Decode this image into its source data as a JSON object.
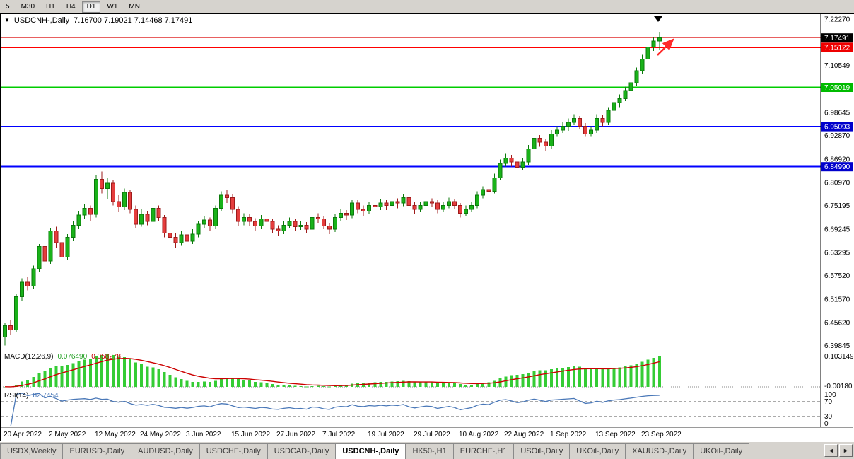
{
  "toolbar": {
    "timeframe_buttons": [
      "5",
      "M30",
      "H1",
      "H4",
      "D1",
      "W1",
      "MN"
    ],
    "active_timeframe": "D1"
  },
  "chart": {
    "symbol_label": "USDCNH-,Daily",
    "ohlc_label": "7.16700 7.19021 7.14468 7.17491",
    "dropdown_icon": "▼"
  },
  "chart_data": {
    "type": "candlestick",
    "symbol": "USDCNH-",
    "timeframe": "Daily",
    "title": "USDCNH-,Daily 7.16700 7.19021 7.14468 7.17491",
    "last_candle": {
      "open": 7.167,
      "high": 7.19021,
      "low": 7.14468,
      "close": 7.17491
    },
    "price_range": {
      "min": 6.385,
      "max": 7.235
    },
    "colors": {
      "up": "#19b219",
      "up_border": "#0b7a0b",
      "down": "#e53d3d",
      "down_border": "#9e1b1b",
      "arrow": "#ff2a2a",
      "bid_tag_bg": "#000000",
      "red_line": "#ff0000",
      "green_line": "#00cc00",
      "blue_line": "#0000ff"
    },
    "y_axis_labels": [
      "7.22270",
      "7.10549",
      "6.98645",
      "6.92870",
      "6.86920",
      "6.80970",
      "6.75195",
      "6.69245",
      "6.63295",
      "6.57520",
      "6.51570",
      "6.45620",
      "6.39845"
    ],
    "price_lines": [
      {
        "label": "7.17491",
        "price": 7.17491,
        "color": "#e86060",
        "width": 1,
        "dash": "",
        "label_bg": "#000000",
        "role": "bid"
      },
      {
        "label": "7.15122",
        "price": 7.15122,
        "color": "#ff0000",
        "width": 2,
        "dash": "",
        "label_bg": "#ee0000",
        "role": "resistance"
      },
      {
        "label": "7.05019",
        "price": 7.05019,
        "color": "#00cc00",
        "width": 2,
        "dash": "",
        "label_bg": "#00bb00",
        "role": "support"
      },
      {
        "label": "6.95093",
        "price": 6.95093,
        "color": "#0000ff",
        "width": 2,
        "dash": "",
        "label_bg": "#0000cc",
        "role": "support"
      },
      {
        "label": "6.84990",
        "price": 6.8499,
        "color": "#0000ff",
        "width": 2,
        "dash": "",
        "label_bg": "#0000cc",
        "role": "support"
      }
    ],
    "x_ticks": [
      {
        "label": "20 Apr 2022",
        "index": 0
      },
      {
        "label": "2 May 2022",
        "index": 8
      },
      {
        "label": "12 May 2022",
        "index": 16
      },
      {
        "label": "24 May 2022",
        "index": 24
      },
      {
        "label": "3 Jun 2022",
        "index": 32
      },
      {
        "label": "15 Jun 2022",
        "index": 40
      },
      {
        "label": "27 Jun 2022",
        "index": 48
      },
      {
        "label": "7 Jul 2022",
        "index": 56
      },
      {
        "label": "19 Jul 2022",
        "index": 64
      },
      {
        "label": "29 Jul 2022",
        "index": 72
      },
      {
        "label": "10 Aug 2022",
        "index": 80
      },
      {
        "label": "22 Aug 2022",
        "index": 88
      },
      {
        "label": "1 Sep 2022",
        "index": 96
      },
      {
        "label": "13 Sep 2022",
        "index": 104
      },
      {
        "label": "23 Sep 2022",
        "index": 112
      }
    ],
    "candles": [
      [
        6.42,
        6.455,
        6.398,
        6.448
      ],
      [
        6.448,
        6.462,
        6.425,
        6.438
      ],
      [
        6.438,
        6.53,
        6.432,
        6.522
      ],
      [
        6.522,
        6.568,
        6.512,
        6.558
      ],
      [
        6.558,
        6.572,
        6.538,
        6.548
      ],
      [
        6.548,
        6.6,
        6.542,
        6.592
      ],
      [
        6.592,
        6.655,
        6.585,
        6.648
      ],
      [
        6.648,
        6.69,
        6.602,
        6.612
      ],
      [
        6.612,
        6.695,
        6.605,
        6.688
      ],
      [
        6.688,
        6.698,
        6.645,
        6.658
      ],
      [
        6.658,
        6.665,
        6.612,
        6.622
      ],
      [
        6.622,
        6.68,
        6.615,
        6.672
      ],
      [
        6.672,
        6.712,
        6.662,
        6.702
      ],
      [
        6.702,
        6.738,
        6.692,
        6.728
      ],
      [
        6.728,
        6.755,
        6.718,
        6.745
      ],
      [
        6.745,
        6.752,
        6.712,
        6.73
      ],
      [
        6.73,
        6.828,
        6.722,
        6.818
      ],
      [
        6.818,
        6.838,
        6.782,
        6.795
      ],
      [
        6.795,
        6.822,
        6.768,
        6.808
      ],
      [
        6.808,
        6.815,
        6.752,
        6.762
      ],
      [
        6.762,
        6.778,
        6.735,
        6.748
      ],
      [
        6.748,
        6.795,
        6.74,
        6.785
      ],
      [
        6.785,
        6.792,
        6.732,
        6.742
      ],
      [
        6.742,
        6.752,
        6.695,
        6.705
      ],
      [
        6.705,
        6.742,
        6.698,
        6.73
      ],
      [
        6.73,
        6.738,
        6.702,
        6.712
      ],
      [
        6.712,
        6.755,
        6.705,
        6.745
      ],
      [
        6.745,
        6.752,
        6.712,
        6.722
      ],
      [
        6.722,
        6.728,
        6.672,
        6.682
      ],
      [
        6.682,
        6.695,
        6.66,
        6.672
      ],
      [
        6.672,
        6.682,
        6.645,
        6.658
      ],
      [
        6.658,
        6.688,
        6.65,
        6.678
      ],
      [
        6.678,
        6.685,
        6.652,
        6.662
      ],
      [
        6.662,
        6.692,
        6.655,
        6.68
      ],
      [
        6.68,
        6.712,
        6.672,
        6.705
      ],
      [
        6.705,
        6.725,
        6.695,
        6.715
      ],
      [
        6.715,
        6.722,
        6.688,
        6.7
      ],
      [
        6.7,
        6.752,
        6.692,
        6.745
      ],
      [
        6.745,
        6.788,
        6.738,
        6.778
      ],
      [
        6.778,
        6.79,
        6.758,
        6.772
      ],
      [
        6.772,
        6.78,
        6.732,
        6.742
      ],
      [
        6.742,
        6.75,
        6.7,
        6.712
      ],
      [
        6.712,
        6.732,
        6.702,
        6.722
      ],
      [
        6.722,
        6.73,
        6.7,
        6.712
      ],
      [
        6.712,
        6.72,
        6.688,
        6.7
      ],
      [
        6.7,
        6.728,
        6.692,
        6.718
      ],
      [
        6.718,
        6.726,
        6.7,
        6.712
      ],
      [
        6.712,
        6.718,
        6.682,
        6.692
      ],
      [
        6.692,
        6.702,
        6.675,
        6.688
      ],
      [
        6.688,
        6.712,
        6.68,
        6.702
      ],
      [
        6.702,
        6.722,
        6.695,
        6.712
      ],
      [
        6.712,
        6.718,
        6.688,
        6.698
      ],
      [
        6.698,
        6.712,
        6.69,
        6.702
      ],
      [
        6.702,
        6.71,
        6.682,
        6.692
      ],
      [
        6.692,
        6.73,
        6.685,
        6.722
      ],
      [
        6.722,
        6.732,
        6.708,
        6.718
      ],
      [
        6.718,
        6.725,
        6.692,
        6.7
      ],
      [
        6.7,
        6.708,
        6.68,
        6.692
      ],
      [
        6.692,
        6.73,
        6.685,
        6.722
      ],
      [
        6.722,
        6.742,
        6.712,
        6.732
      ],
      [
        6.732,
        6.74,
        6.715,
        6.728
      ],
      [
        6.728,
        6.765,
        6.72,
        6.758
      ],
      [
        6.758,
        6.765,
        6.732,
        6.742
      ],
      [
        6.742,
        6.752,
        6.725,
        6.738
      ],
      [
        6.738,
        6.76,
        6.73,
        6.752
      ],
      [
        6.752,
        6.758,
        6.735,
        6.748
      ],
      [
        6.748,
        6.768,
        6.74,
        6.758
      ],
      [
        6.758,
        6.765,
        6.74,
        6.752
      ],
      [
        6.752,
        6.772,
        6.745,
        6.762
      ],
      [
        6.762,
        6.77,
        6.745,
        6.758
      ],
      [
        6.758,
        6.78,
        6.75,
        6.772
      ],
      [
        6.772,
        6.778,
        6.742,
        6.752
      ],
      [
        6.752,
        6.76,
        6.73,
        6.742
      ],
      [
        6.742,
        6.762,
        6.735,
        6.752
      ],
      [
        6.752,
        6.772,
        6.745,
        6.762
      ],
      [
        6.762,
        6.77,
        6.748,
        6.758
      ],
      [
        6.758,
        6.765,
        6.732,
        6.742
      ],
      [
        6.742,
        6.762,
        6.735,
        6.752
      ],
      [
        6.752,
        6.772,
        6.745,
        6.762
      ],
      [
        6.762,
        6.768,
        6.742,
        6.752
      ],
      [
        6.752,
        6.758,
        6.722,
        6.732
      ],
      [
        6.732,
        6.752,
        6.725,
        6.742
      ],
      [
        6.742,
        6.762,
        6.735,
        6.752
      ],
      [
        6.752,
        6.788,
        6.745,
        6.778
      ],
      [
        6.778,
        6.8,
        6.77,
        6.792
      ],
      [
        6.792,
        6.8,
        6.775,
        6.788
      ],
      [
        6.788,
        6.832,
        6.782,
        6.822
      ],
      [
        6.822,
        6.868,
        6.815,
        6.858
      ],
      [
        6.858,
        6.882,
        6.85,
        6.872
      ],
      [
        6.872,
        6.88,
        6.85,
        6.862
      ],
      [
        6.862,
        6.87,
        6.838,
        6.848
      ],
      [
        6.848,
        6.872,
        6.84,
        6.862
      ],
      [
        6.862,
        6.905,
        6.855,
        6.895
      ],
      [
        6.895,
        6.932,
        6.888,
        6.922
      ],
      [
        6.922,
        6.93,
        6.9,
        6.912
      ],
      [
        6.912,
        6.92,
        6.89,
        6.902
      ],
      [
        6.902,
        6.942,
        6.895,
        6.932
      ],
      [
        6.932,
        6.952,
        6.925,
        6.942
      ],
      [
        6.942,
        6.962,
        6.935,
        6.952
      ],
      [
        6.952,
        6.972,
        6.94,
        6.962
      ],
      [
        6.962,
        6.982,
        6.955,
        6.972
      ],
      [
        6.972,
        6.978,
        6.945,
        6.952
      ],
      [
        6.952,
        6.96,
        6.925,
        6.932
      ],
      [
        6.932,
        6.952,
        6.925,
        6.942
      ],
      [
        6.942,
        6.982,
        6.935,
        6.972
      ],
      [
        6.972,
        6.98,
        6.952,
        6.962
      ],
      [
        6.962,
        7.0,
        6.955,
        6.992
      ],
      [
        6.992,
        7.02,
        6.985,
        7.012
      ],
      [
        7.012,
        7.032,
        7.0,
        7.022
      ],
      [
        7.022,
        7.052,
        7.015,
        7.042
      ],
      [
        7.042,
        7.072,
        7.035,
        7.062
      ],
      [
        7.062,
        7.1,
        7.055,
        7.092
      ],
      [
        7.092,
        7.132,
        7.085,
        7.122
      ],
      [
        7.122,
        7.16,
        7.115,
        7.152
      ],
      [
        7.152,
        7.178,
        7.142,
        7.167
      ],
      [
        7.167,
        7.19021,
        7.14468,
        7.17491
      ]
    ],
    "indicators": {
      "macd": {
        "name": "MACD(12,26,9)",
        "value_main": "0.076490",
        "value_signal": "0.058278",
        "axis_max": "0.103149",
        "axis_min": "-0.001805",
        "params": [
          12,
          26,
          9
        ],
        "histogram_color": "#35cc35",
        "signal_color": "#cc0000"
      },
      "rsi": {
        "name": "RSI(14)",
        "value": "82.7454",
        "period": 14,
        "levels": [
          "100",
          "70",
          "30",
          "0"
        ],
        "line_color": "#4a78b8"
      }
    },
    "annotations": [
      {
        "name": "triangle-down-marker",
        "color": "#000000"
      },
      {
        "name": "up-trend-arrow",
        "color": "#ff2a2a"
      }
    ]
  },
  "tabs": {
    "items": [
      "USDX,Weekly",
      "EURUSD-,Daily",
      "AUDUSD-,Daily",
      "USDCHF-,Daily",
      "USDCAD-,Daily",
      "USDCNH-,Daily",
      "HK50-,H1",
      "EURCHF-,H1",
      "USOil-,Daily",
      "UKOil-,Daily",
      "XAUUSD-,Daily",
      "UKOil-,Daily"
    ],
    "active": "USDCNH-,Daily",
    "scroll_left_icon": "◄",
    "scroll_right_icon": "►"
  }
}
